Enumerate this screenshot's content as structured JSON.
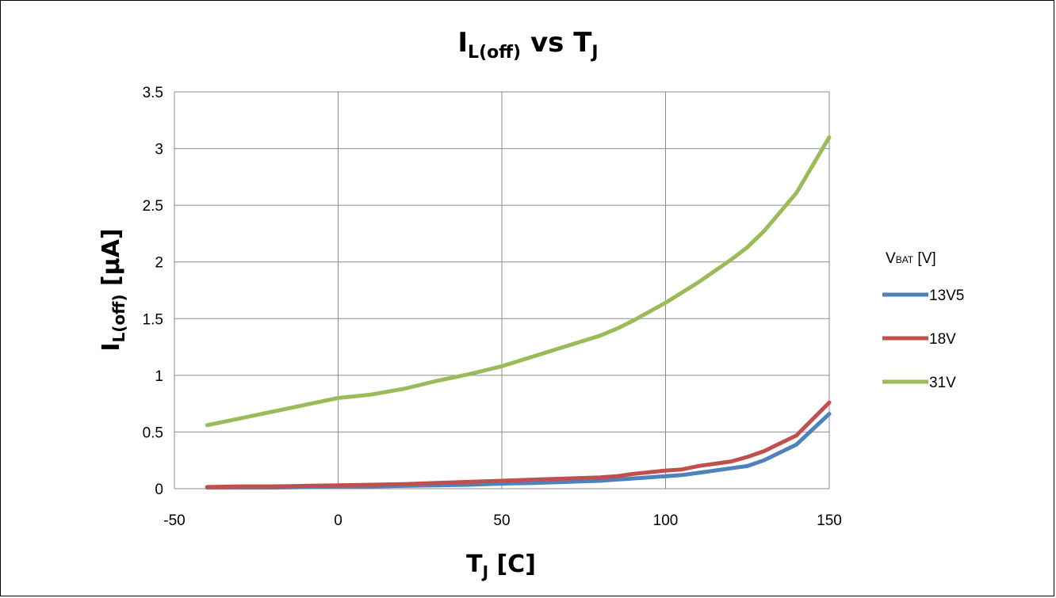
{
  "chart_data": {
    "type": "line",
    "title": {
      "main": "I",
      "sub": "L(off)",
      "mid": " vs T",
      "sub2": "J"
    },
    "xlabel": {
      "main": "T",
      "sub": "J",
      "rest": " [C]"
    },
    "ylabel": {
      "main": "I",
      "sub": "L(off)",
      "rest": " [µA]"
    },
    "xlim": [
      -50,
      150
    ],
    "ylim": [
      0,
      3.5
    ],
    "xticks": [
      "-50",
      "0",
      "50",
      "100",
      "150"
    ],
    "xtick_values": [
      -50,
      0,
      50,
      100,
      150
    ],
    "yticks": [
      "0",
      "0.5",
      "1",
      "1.5",
      "2",
      "2.5",
      "3",
      "3.5"
    ],
    "ytick_values": [
      0,
      0.5,
      1,
      1.5,
      2,
      2.5,
      3,
      3.5
    ],
    "grid": true,
    "legend": {
      "title_main": "V",
      "title_sub": "BAT",
      "title_rest": " [V]",
      "position": "right"
    },
    "x": [
      -40,
      -30,
      -20,
      -10,
      0,
      10,
      20,
      30,
      40,
      50,
      60,
      70,
      80,
      85,
      90,
      100,
      105,
      110,
      120,
      125,
      130,
      140,
      150
    ],
    "series": [
      {
        "name": "13V5",
        "color": "#4f81bd",
        "values": [
          0.01,
          0.01,
          0.01,
          0.015,
          0.02,
          0.02,
          0.025,
          0.03,
          0.035,
          0.045,
          0.05,
          0.06,
          0.07,
          0.08,
          0.09,
          0.11,
          0.12,
          0.14,
          0.18,
          0.2,
          0.25,
          0.39,
          0.66
        ]
      },
      {
        "name": "18V",
        "color": "#c0504d",
        "values": [
          0.015,
          0.02,
          0.02,
          0.025,
          0.03,
          0.035,
          0.04,
          0.05,
          0.06,
          0.07,
          0.08,
          0.09,
          0.1,
          0.11,
          0.13,
          0.16,
          0.17,
          0.2,
          0.24,
          0.28,
          0.33,
          0.47,
          0.76
        ]
      },
      {
        "name": "31V",
        "color": "#9bbb59",
        "values": [
          0.56,
          0.62,
          0.68,
          0.74,
          0.8,
          0.83,
          0.88,
          0.95,
          1.01,
          1.08,
          1.17,
          1.26,
          1.35,
          1.41,
          1.48,
          1.64,
          1.73,
          1.82,
          2.02,
          2.13,
          2.27,
          2.61,
          3.1
        ]
      }
    ]
  }
}
